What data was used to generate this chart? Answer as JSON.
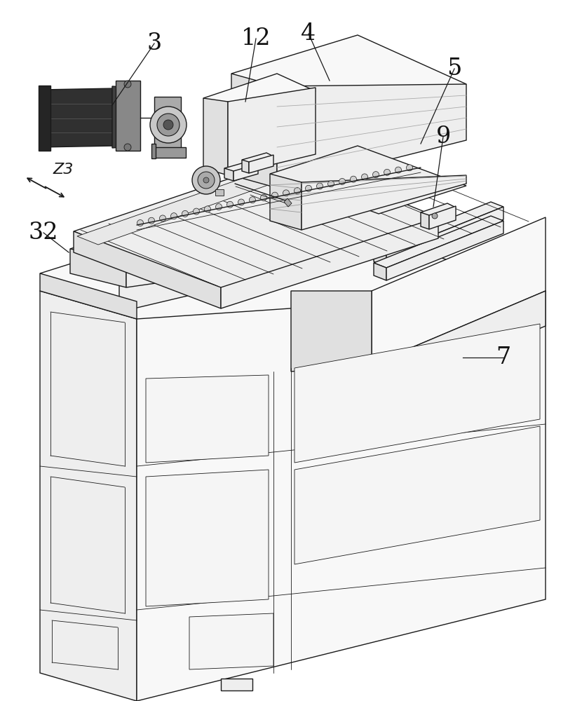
{
  "bg": "#ffffff",
  "lc": "#1a1a1a",
  "lw": 1.0,
  "tlw": 0.6,
  "flw": 1.4,
  "face_light": "#f8f8f8",
  "face_mid": "#eeeeee",
  "face_dark": "#e0e0e0",
  "face_shadow": "#d0d0d0",
  "black_fill": "#222222",
  "gray_fill": "#888888",
  "label_fs": 24,
  "small_fs": 16
}
